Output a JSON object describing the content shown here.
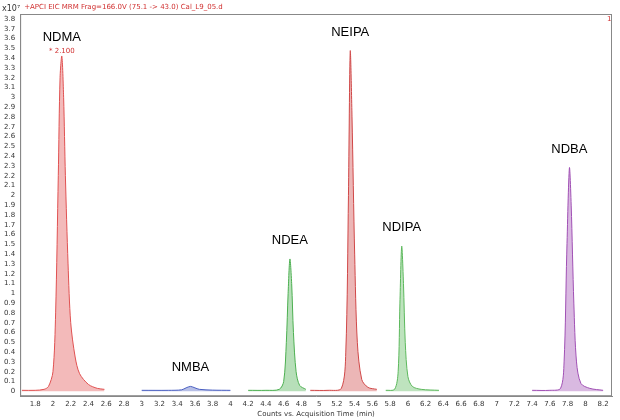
{
  "chart_data": {
    "type": "line",
    "title": "+APCI EIC MRM Frag=166.0V (75.1 -> 43.0) Cal_L9_05.d",
    "xlabel": "Counts vs. Acquisition Time (min)",
    "ylabel": "x10⁷",
    "grid": false,
    "xlim": [
      1.63,
      8.3
    ],
    "xticks": [
      1.8,
      2,
      2.2,
      2.4,
      2.6,
      2.8,
      3,
      3.2,
      3.4,
      3.6,
      3.8,
      4,
      4.2,
      4.4,
      4.6,
      4.8,
      5,
      5.2,
      5.4,
      5.6,
      5.8,
      6,
      6.2,
      6.4,
      6.6,
      6.8,
      7,
      7.2,
      7.4,
      7.6,
      7.8,
      8,
      8.2
    ],
    "ylim": [
      -0.05,
      3.85
    ],
    "yticks": [
      0,
      0.1,
      0.2,
      0.3,
      0.4,
      0.5,
      0.6,
      0.7,
      0.8,
      0.9,
      1,
      1.1,
      1.2,
      1.3,
      1.4,
      1.5,
      1.6,
      1.7,
      1.8,
      1.9,
      2,
      2.1,
      2.2,
      2.3,
      2.4,
      2.5,
      2.6,
      2.7,
      2.8,
      2.9,
      3,
      3.1,
      3.2,
      3.3,
      3.4,
      3.5,
      3.6,
      3.7,
      3.8
    ],
    "annotations": [
      {
        "text": "* 2.100",
        "x": 2.1,
        "y": 3.42
      },
      {
        "text": "1",
        "x": 8.27,
        "y": 3.75
      }
    ],
    "series": [
      {
        "name": "NDMA",
        "color": "#e05252",
        "x": [
          1.65,
          1.8,
          1.9,
          1.95,
          2.0,
          2.03,
          2.06,
          2.08,
          2.1,
          2.12,
          2.14,
          2.17,
          2.2,
          2.25,
          2.3,
          2.4,
          2.5,
          2.58
        ],
        "values": [
          0.01,
          0.01,
          0.02,
          0.05,
          0.2,
          0.8,
          2.2,
          3.2,
          3.42,
          3.0,
          2.2,
          1.3,
          0.7,
          0.35,
          0.18,
          0.07,
          0.03,
          0.02
        ]
      },
      {
        "name": "NMBA",
        "color": "#4a5fc1",
        "x": [
          3.0,
          3.3,
          3.45,
          3.5,
          3.55,
          3.6,
          3.65,
          3.8,
          4.0
        ],
        "values": [
          0.01,
          0.01,
          0.015,
          0.035,
          0.05,
          0.035,
          0.02,
          0.012,
          0.01
        ]
      },
      {
        "name": "NDEA",
        "color": "#4caf50",
        "x": [
          4.2,
          4.4,
          4.55,
          4.6,
          4.63,
          4.65,
          4.67,
          4.69,
          4.71,
          4.74,
          4.78,
          4.85
        ],
        "values": [
          0.01,
          0.01,
          0.02,
          0.1,
          0.5,
          1.0,
          1.35,
          1.1,
          0.6,
          0.2,
          0.06,
          0.02
        ]
      },
      {
        "name": "NEIPA",
        "color": "#d04848",
        "x": [
          4.9,
          5.1,
          5.25,
          5.3,
          5.33,
          5.35,
          5.37,
          5.4,
          5.43,
          5.48,
          5.55,
          5.65
        ],
        "values": [
          0.01,
          0.01,
          0.03,
          0.4,
          2.0,
          3.47,
          2.8,
          1.4,
          0.5,
          0.12,
          0.04,
          0.02
        ]
      },
      {
        "name": "NDIPA",
        "color": "#5cb85c",
        "x": [
          5.75,
          5.85,
          5.89,
          5.91,
          5.93,
          5.95,
          5.97,
          6.0,
          6.05,
          6.15,
          6.35
        ],
        "values": [
          0.01,
          0.02,
          0.2,
          0.9,
          1.48,
          1.1,
          0.5,
          0.15,
          0.05,
          0.02,
          0.01
        ]
      },
      {
        "name": "NDBA",
        "color": "#a050b4",
        "x": [
          7.4,
          7.6,
          7.72,
          7.76,
          7.79,
          7.82,
          7.84,
          7.87,
          7.9,
          7.95,
          8.05,
          8.2
        ],
        "values": [
          0.01,
          0.01,
          0.03,
          0.3,
          1.4,
          2.28,
          1.9,
          0.9,
          0.3,
          0.08,
          0.03,
          0.01
        ]
      }
    ]
  }
}
